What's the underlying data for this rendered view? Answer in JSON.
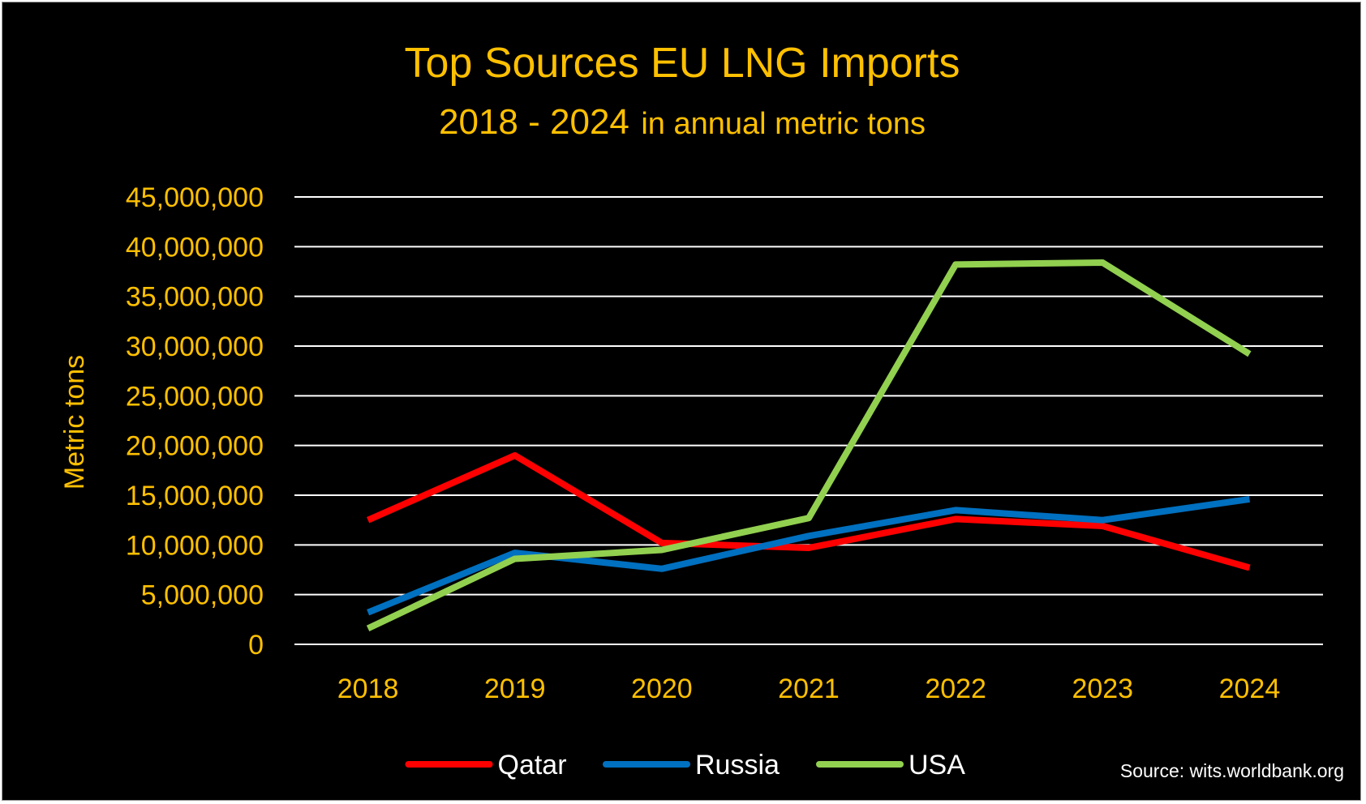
{
  "chart_data": {
    "type": "line",
    "title": "Top Sources EU LNG Imports",
    "subtitle_years": "2018 - 2024",
    "subtitle_units": "in annual metric tons",
    "xlabel": "",
    "ylabel": "Metric tons",
    "ylim": [
      0,
      45000000
    ],
    "yticks": [
      0,
      5000000,
      10000000,
      15000000,
      20000000,
      25000000,
      30000000,
      35000000,
      40000000,
      45000000
    ],
    "ytick_labels": [
      "0",
      "5,000,000",
      "10,000,000",
      "15,000,000",
      "20,000,000",
      "25,000,000",
      "30,000,000",
      "35,000,000",
      "40,000,000",
      "45,000,000"
    ],
    "categories": [
      "2018",
      "2019",
      "2020",
      "2021",
      "2022",
      "2023",
      "2024"
    ],
    "series": [
      {
        "name": "Qatar",
        "color": "#ff0000",
        "values": [
          12500000,
          19000000,
          10200000,
          9700000,
          12600000,
          11900000,
          7700000
        ]
      },
      {
        "name": "Russia",
        "color": "#0070c0",
        "values": [
          3200000,
          9200000,
          7600000,
          10900000,
          13500000,
          12500000,
          14600000
        ]
      },
      {
        "name": "USA",
        "color": "#92d050",
        "values": [
          1600000,
          8600000,
          9500000,
          12700000,
          38200000,
          38400000,
          29200000
        ]
      }
    ],
    "grid": true,
    "legend": "bottom",
    "source": "Source: wits.worldbank.org"
  },
  "colors": {
    "background": "#000000",
    "text_accent": "#ffc000",
    "gridline": "#ffffff"
  }
}
